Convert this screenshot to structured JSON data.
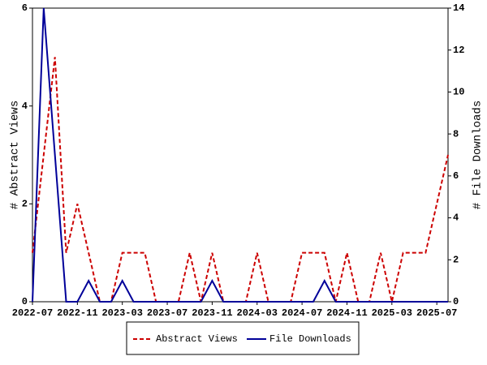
{
  "chart_data": {
    "type": "line",
    "categories": [
      "2022-07",
      null,
      null,
      null,
      "2022-11",
      null,
      null,
      null,
      "2023-03",
      null,
      null,
      null,
      "2023-07",
      null,
      null,
      null,
      "2023-11",
      null,
      null,
      null,
      "2024-03",
      null,
      null,
      null,
      "2024-07",
      null,
      null,
      null,
      "2024-11",
      null,
      null,
      null,
      "2025-03",
      null,
      null,
      null,
      "2025-07",
      null
    ],
    "series": [
      {
        "name": "Abstract Views",
        "color": "#cc0000",
        "dashed": true,
        "axis": "y",
        "values": [
          1,
          3,
          5,
          1,
          2,
          1,
          0,
          0,
          1,
          1,
          1,
          0,
          0,
          0,
          1,
          0,
          1,
          0,
          0,
          0,
          1,
          0,
          0,
          0,
          1,
          1,
          1,
          0,
          1,
          0,
          0,
          1,
          0,
          1,
          1,
          1,
          2,
          3
        ]
      },
      {
        "name": "File Downloads",
        "color": "#000099",
        "dashed": false,
        "axis": "y2",
        "values": [
          0,
          14,
          7,
          0,
          0,
          1,
          0,
          0,
          1,
          0,
          0,
          0,
          0,
          0,
          0,
          0,
          1,
          0,
          0,
          0,
          0,
          0,
          0,
          0,
          0,
          0,
          1,
          0,
          0,
          0,
          0,
          0,
          0,
          0,
          0,
          0,
          0,
          0
        ]
      }
    ],
    "ylabel": "# Abstract Views",
    "y2label": "# File Downloads",
    "ylim": [
      0,
      6
    ],
    "yticks": [
      0,
      2,
      4,
      6
    ],
    "y2lim": [
      0,
      14
    ],
    "y2ticks": [
      0,
      2,
      4,
      6,
      8,
      10,
      12,
      14
    ],
    "legend": "bottom"
  }
}
